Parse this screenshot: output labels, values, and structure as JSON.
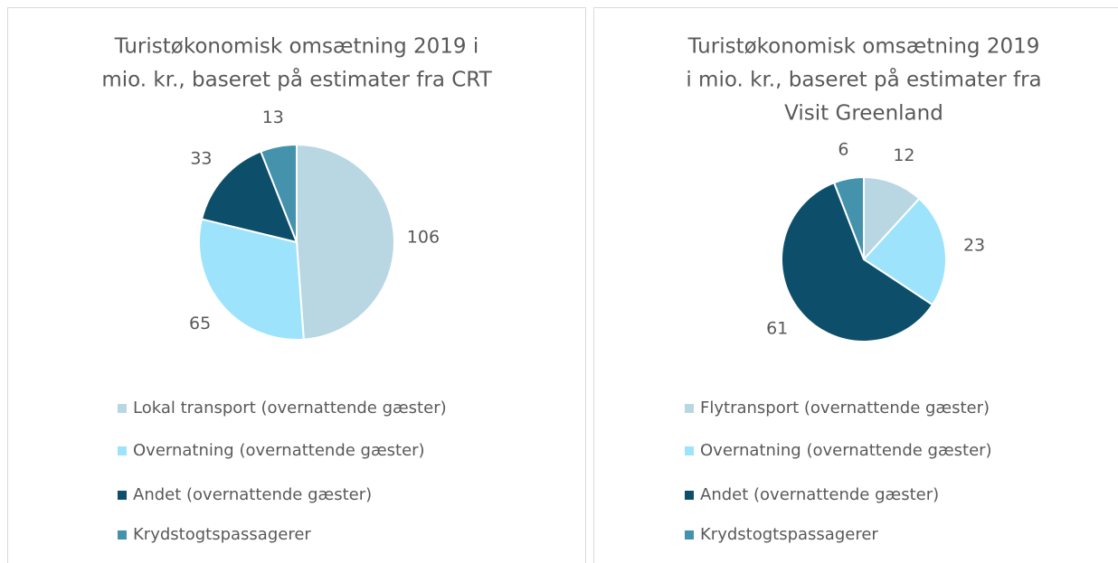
{
  "chart_data": [
    {
      "type": "pie",
      "title": [
        "Turistøkonomisk omsætning 2019 i",
        "mio. kr., baseret på estimater fra CRT"
      ],
      "categories": [
        "Lokal transport (overnattende gæster)",
        "Overnatning (overnattende gæster)",
        "Andet (overnattende gæster)",
        "Krydstogtspassagerer"
      ],
      "values": [
        106,
        65,
        33,
        13
      ],
      "colors": [
        "#b9d7e3",
        "#9de3fb",
        "#0d4f6b",
        "#4592ad"
      ],
      "legend": "bottom"
    },
    {
      "type": "pie",
      "title": [
        "Turistøkonomisk omsætning 2019",
        "i mio. kr., baseret på estimater fra",
        "Visit Greenland"
      ],
      "categories": [
        "Flytransport (overnattende gæster)",
        "Overnatning (overnattende gæster)",
        "Andet (overnattende gæster)",
        "Krydstogtspassagerer"
      ],
      "values": [
        12,
        23,
        61,
        6
      ],
      "colors": [
        "#b9d7e3",
        "#9de3fb",
        "#0d4f6b",
        "#4592ad"
      ],
      "legend": "bottom"
    }
  ]
}
